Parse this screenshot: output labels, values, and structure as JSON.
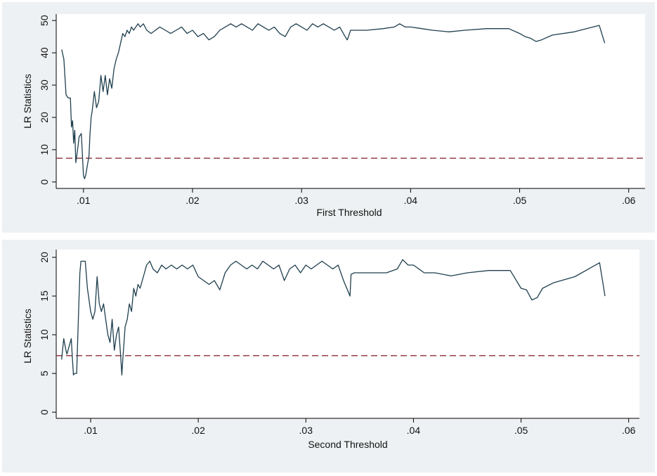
{
  "colors": {
    "panel_background": "#eef1f3",
    "plot_background": "#ffffff",
    "series": "#1f3f4e",
    "reference_line": "#8c2d3a"
  },
  "chart_data": [
    {
      "type": "line",
      "xlabel": "First Threshold",
      "ylabel": "LR Statistics",
      "xlim": [
        0.0075,
        0.0615
      ],
      "ylim": [
        -2,
        52
      ],
      "xticks": [
        0.01,
        0.02,
        0.03,
        0.04,
        0.05,
        0.06
      ],
      "xtick_labels": [
        ".01",
        ".02",
        ".03",
        ".04",
        ".05",
        ".06"
      ],
      "yticks": [
        0,
        10,
        20,
        30,
        40,
        50
      ],
      "ytick_labels": [
        "0",
        "10",
        "20",
        "30",
        "40",
        "50"
      ],
      "grid": false,
      "reference_line": {
        "y": 7.35,
        "style": "dashed"
      },
      "series": [
        {
          "x": [
            0.008,
            0.0082,
            0.0084,
            0.0086,
            0.0088,
            0.0089,
            0.009,
            0.0091,
            0.0092,
            0.0093,
            0.0095,
            0.0096,
            0.0098,
            0.01,
            0.0101,
            0.0102,
            0.0103,
            0.0104,
            0.0105,
            0.0106,
            0.0107,
            0.0108,
            0.011,
            0.0112,
            0.0114,
            0.0116,
            0.0118,
            0.012,
            0.0122,
            0.0124,
            0.0126,
            0.0128,
            0.013,
            0.0132,
            0.0134,
            0.0136,
            0.0138,
            0.014,
            0.0142,
            0.0144,
            0.0146,
            0.0148,
            0.015,
            0.0152,
            0.0155,
            0.0158,
            0.0162,
            0.0166,
            0.017,
            0.0175,
            0.018,
            0.0185,
            0.019,
            0.0195,
            0.02,
            0.0205,
            0.021,
            0.0215,
            0.022,
            0.0225,
            0.023,
            0.0235,
            0.024,
            0.0245,
            0.025,
            0.0255,
            0.026,
            0.0265,
            0.027,
            0.0275,
            0.028,
            0.0285,
            0.029,
            0.0295,
            0.03,
            0.0305,
            0.031,
            0.0315,
            0.032,
            0.0325,
            0.033,
            0.0335,
            0.034,
            0.0342,
            0.0345,
            0.036,
            0.0375,
            0.0385,
            0.039,
            0.0395,
            0.04,
            0.041,
            0.042,
            0.0435,
            0.045,
            0.047,
            0.049,
            0.05,
            0.0505,
            0.051,
            0.0515,
            0.052,
            0.053,
            0.055,
            0.0573,
            0.0578
          ],
          "y": [
            41,
            38,
            27,
            26,
            26,
            17,
            19,
            12,
            16,
            6,
            11,
            14,
            15,
            2,
            1,
            2,
            4,
            6,
            8,
            15,
            20,
            22,
            28,
            23,
            25,
            33,
            28,
            33,
            27,
            32,
            29,
            35,
            38,
            40,
            43,
            46,
            45,
            47,
            46,
            48,
            47,
            48,
            49,
            48,
            49,
            47,
            46,
            47,
            48,
            47,
            46,
            47,
            48,
            46,
            47,
            45,
            46,
            44,
            45,
            47,
            48,
            49,
            48,
            49,
            48,
            47,
            49,
            48,
            47,
            48,
            46,
            45,
            48,
            49,
            48,
            47,
            49,
            48,
            49,
            48,
            47,
            48,
            45,
            44,
            47,
            47,
            47.5,
            48,
            49,
            48,
            48,
            47.5,
            47,
            46.5,
            47,
            47.5,
            47.5,
            46,
            45,
            44.5,
            43.5,
            44,
            45.5,
            46.5,
            48.5,
            43
          ]
        }
      ]
    },
    {
      "type": "line",
      "xlabel": "Second Threshold",
      "ylabel": "LR Statistics",
      "xlim": [
        0.0068,
        0.061
      ],
      "ylim": [
        -0.8,
        21
      ],
      "xticks": [
        0.01,
        0.02,
        0.03,
        0.04,
        0.05,
        0.06
      ],
      "xtick_labels": [
        ".01",
        ".02",
        ".03",
        ".04",
        ".05",
        ".06"
      ],
      "yticks": [
        0,
        5,
        10,
        15,
        20
      ],
      "ytick_labels": [
        "0",
        "5",
        "10",
        "15",
        "20"
      ],
      "grid": false,
      "reference_line": {
        "y": 7.3,
        "style": "dashed"
      },
      "series": [
        {
          "x": [
            0.0073,
            0.0075,
            0.0077,
            0.0078,
            0.008,
            0.0082,
            0.0083,
            0.0084,
            0.0085,
            0.0087,
            0.0089,
            0.009,
            0.0091,
            0.0093,
            0.0095,
            0.0097,
            0.01,
            0.0102,
            0.0104,
            0.0106,
            0.0108,
            0.011,
            0.0112,
            0.0114,
            0.0116,
            0.0118,
            0.012,
            0.0122,
            0.0124,
            0.0126,
            0.0128,
            0.0129,
            0.013,
            0.0131,
            0.0132,
            0.0134,
            0.0136,
            0.0138,
            0.014,
            0.0142,
            0.0144,
            0.0146,
            0.0148,
            0.015,
            0.0152,
            0.0155,
            0.0158,
            0.0162,
            0.0166,
            0.017,
            0.0175,
            0.018,
            0.0185,
            0.019,
            0.0195,
            0.02,
            0.0205,
            0.021,
            0.0215,
            0.022,
            0.0225,
            0.023,
            0.0235,
            0.024,
            0.0245,
            0.025,
            0.0255,
            0.026,
            0.0265,
            0.027,
            0.0275,
            0.028,
            0.0285,
            0.029,
            0.0295,
            0.03,
            0.0305,
            0.031,
            0.0315,
            0.032,
            0.0325,
            0.033,
            0.0335,
            0.0338,
            0.0341,
            0.0342,
            0.0345,
            0.036,
            0.0375,
            0.0385,
            0.039,
            0.0395,
            0.04,
            0.041,
            0.042,
            0.0435,
            0.045,
            0.047,
            0.049,
            0.05,
            0.0505,
            0.051,
            0.0515,
            0.052,
            0.053,
            0.055,
            0.0573,
            0.0578
          ],
          "y": [
            6.8,
            9.5,
            8,
            7.5,
            8.5,
            9.5,
            7,
            4.8,
            5,
            5,
            14,
            18,
            19.5,
            19.5,
            19.5,
            16,
            13,
            12,
            13,
            17.5,
            14,
            13,
            14,
            12,
            10,
            9,
            12,
            8,
            10,
            11,
            7,
            4.8,
            7,
            9,
            11,
            12,
            14,
            13,
            16,
            15,
            16.5,
            16,
            17,
            18,
            19,
            19.5,
            18.5,
            18,
            19,
            18.5,
            19,
            18.5,
            19,
            18.5,
            19,
            17.5,
            17,
            16.5,
            17,
            15.8,
            18,
            19,
            19.5,
            19,
            18.5,
            19,
            18.5,
            19.5,
            19,
            18.5,
            19,
            17,
            18.5,
            19,
            18,
            19,
            18.5,
            19,
            19.5,
            19,
            18.5,
            19,
            17,
            16,
            15,
            17.8,
            18,
            18,
            18,
            18.5,
            19.7,
            19,
            19,
            18,
            18,
            17.6,
            18,
            18.3,
            18.3,
            16,
            15.8,
            14.5,
            14.8,
            16,
            16.7,
            17.5,
            19.3,
            15
          ]
        }
      ]
    }
  ]
}
